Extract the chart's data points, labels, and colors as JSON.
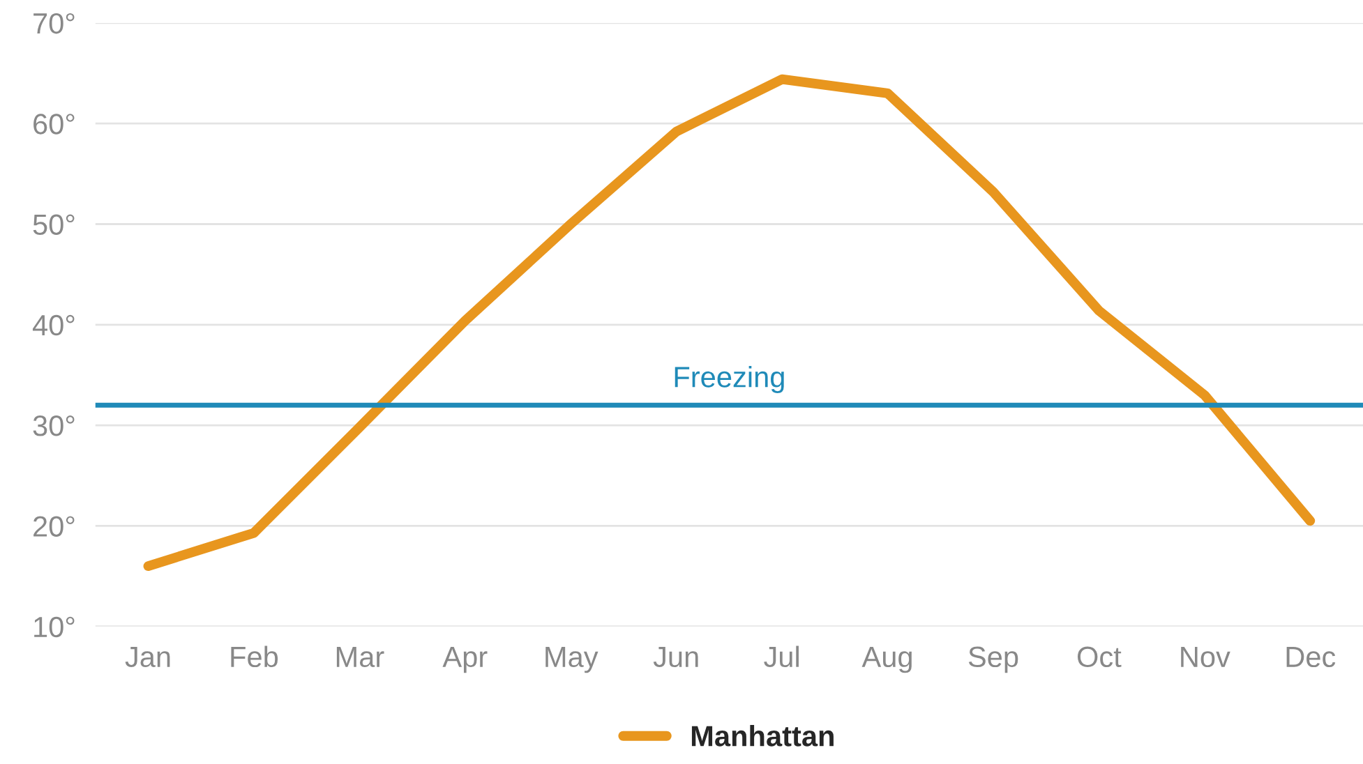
{
  "chart_data": {
    "type": "line",
    "categories": [
      "Jan",
      "Feb",
      "Mar",
      "Apr",
      "May",
      "Jun",
      "Jul",
      "Aug",
      "Sep",
      "Oct",
      "Nov",
      "Dec"
    ],
    "series": [
      {
        "name": "Manhattan",
        "color": "#e8961e",
        "values": [
          16.0,
          19.3,
          29.8,
          40.4,
          50.0,
          59.2,
          64.4,
          63.0,
          53.2,
          41.4,
          33.0,
          20.5
        ]
      }
    ],
    "ylim": [
      10,
      70
    ],
    "yticks": [
      {
        "value": 10,
        "label": "10°"
      },
      {
        "value": 20,
        "label": "20°"
      },
      {
        "value": 30,
        "label": "30°"
      },
      {
        "value": 40,
        "label": "40°"
      },
      {
        "value": 50,
        "label": "50°"
      },
      {
        "value": 60,
        "label": "60°"
      },
      {
        "value": 70,
        "label": "70°"
      }
    ],
    "ref_lines": [
      {
        "axis": "y",
        "value": 32,
        "label": "Freezing",
        "color": "#1f8ab8"
      }
    ],
    "grid": "y",
    "legend": "bottom",
    "line_style": "solid",
    "marker": "none"
  }
}
